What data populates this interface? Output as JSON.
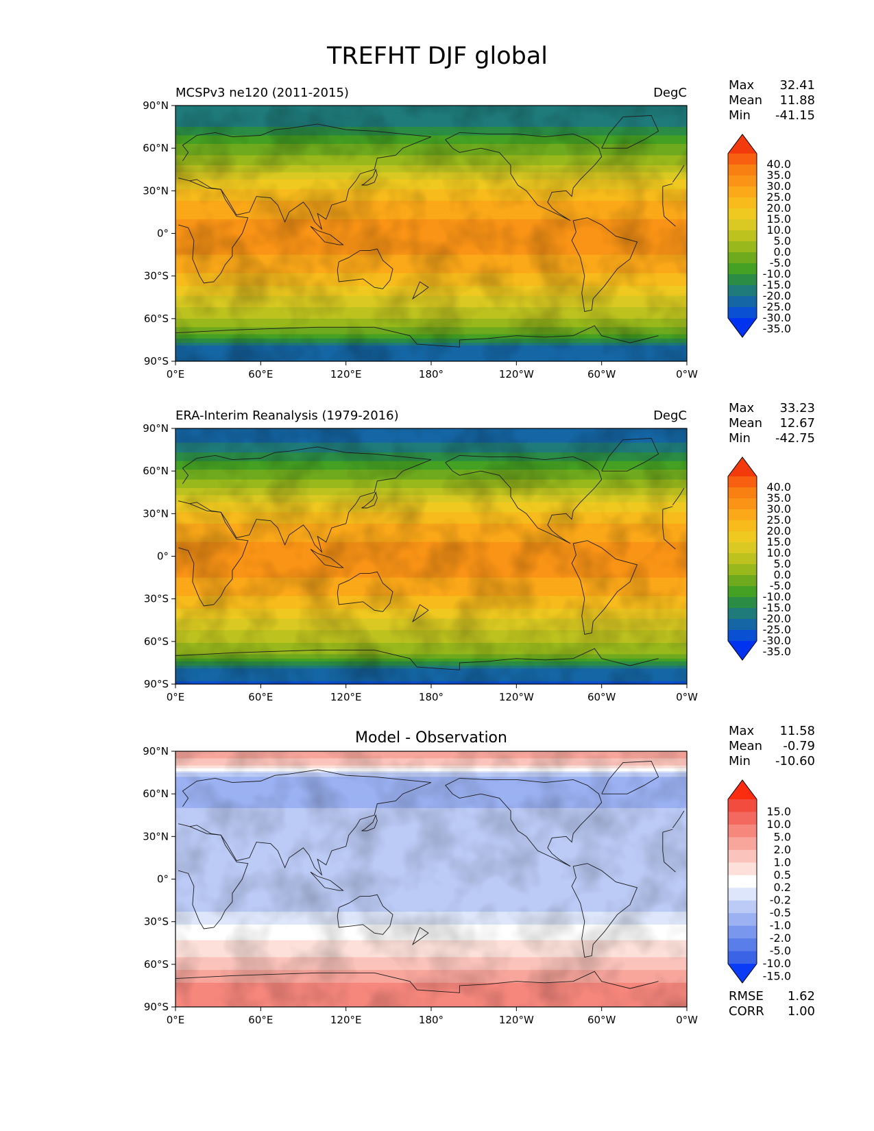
{
  "title": "TREFHT DJF global",
  "chart_data": [
    {
      "type": "heatmap",
      "map": "global-lat-lon",
      "title": "MCSPv3 ne120 (2011-2015)",
      "units": "DegC",
      "x_ticks": [
        "0°E",
        "60°E",
        "120°E",
        "180°",
        "120°W",
        "60°W",
        "0°W"
      ],
      "y_ticks": [
        "90°N",
        "60°N",
        "30°N",
        "0°",
        "30°S",
        "60°S",
        "90°S"
      ],
      "xlim": [
        0,
        360
      ],
      "ylim": [
        -90,
        90
      ],
      "stats": [
        {
          "label": "Max",
          "value": "32.41"
        },
        {
          "label": "Mean",
          "value": "11.88"
        },
        {
          "label": "Min",
          "value": "-41.15"
        }
      ],
      "colorbar": {
        "extend": "both",
        "labels": [
          "40.0",
          "35.0",
          "30.0",
          "25.0",
          "20.0",
          "15.0",
          "10.0",
          "5.0",
          "0.0",
          "-5.0",
          "-10.0",
          "-15.0",
          "-20.0",
          "-25.0",
          "-30.0",
          "-35.0"
        ],
        "colors": [
          "#f33a0c",
          "#f66010",
          "#f88012",
          "#fa9416",
          "#fba819",
          "#f7bb1c",
          "#efc920",
          "#d9c922",
          "#bdc21f",
          "#98b81c",
          "#6faa1e",
          "#45a123",
          "#2b8c45",
          "#1f7b7a",
          "#1566a4",
          "#0a50d2",
          "#0033f0"
        ]
      },
      "zonal_profile": {
        "lat": [
          90,
          80,
          70,
          60,
          50,
          40,
          30,
          20,
          10,
          0,
          -10,
          -20,
          -30,
          -40,
          -50,
          -60,
          -70,
          -80,
          -90
        ],
        "value": [
          -25,
          -24,
          -16,
          -8,
          -2,
          8,
          16,
          22,
          25,
          26,
          26,
          24,
          19,
          13,
          6,
          0,
          -8,
          -26,
          -30
        ]
      }
    },
    {
      "type": "heatmap",
      "map": "global-lat-lon",
      "title": "ERA-Interim Reanalysis (1979-2016)",
      "units": "DegC",
      "x_ticks": [
        "0°E",
        "60°E",
        "120°E",
        "180°",
        "120°W",
        "60°W",
        "0°W"
      ],
      "y_ticks": [
        "90°N",
        "60°N",
        "30°N",
        "0°",
        "30°S",
        "60°S",
        "90°S"
      ],
      "xlim": [
        0,
        360
      ],
      "ylim": [
        -90,
        90
      ],
      "stats": [
        {
          "label": "Max",
          "value": "33.23"
        },
        {
          "label": "Mean",
          "value": "12.67"
        },
        {
          "label": "Min",
          "value": "-42.75"
        }
      ],
      "colorbar": {
        "extend": "both",
        "labels": [
          "40.0",
          "35.0",
          "30.0",
          "25.0",
          "20.0",
          "15.0",
          "10.0",
          "5.0",
          "0.0",
          "-5.0",
          "-10.0",
          "-15.0",
          "-20.0",
          "-25.0",
          "-30.0",
          "-35.0"
        ],
        "colors": [
          "#f33a0c",
          "#f66010",
          "#f88012",
          "#fa9416",
          "#fba819",
          "#f7bb1c",
          "#efc920",
          "#d9c922",
          "#bdc21f",
          "#98b81c",
          "#6faa1e",
          "#45a123",
          "#2b8c45",
          "#1f7b7a",
          "#1566a4",
          "#0a50d2",
          "#0033f0"
        ]
      },
      "zonal_profile": {
        "lat": [
          90,
          80,
          70,
          60,
          50,
          40,
          30,
          20,
          10,
          0,
          -10,
          -20,
          -30,
          -40,
          -50,
          -60,
          -70,
          -80,
          -90
        ],
        "value": [
          -26,
          -25,
          -18,
          -9,
          -2,
          8,
          16,
          22,
          25,
          26,
          26,
          24,
          19,
          13,
          6,
          1,
          -6,
          -27,
          -31
        ]
      }
    },
    {
      "type": "heatmap",
      "map": "global-lat-lon",
      "title": "Model - Observation",
      "units": "",
      "x_ticks": [
        "0°E",
        "60°E",
        "120°E",
        "180°",
        "120°W",
        "60°W",
        "0°W"
      ],
      "y_ticks": [
        "90°N",
        "60°N",
        "30°N",
        "0°",
        "30°S",
        "60°S",
        "90°S"
      ],
      "xlim": [
        0,
        360
      ],
      "ylim": [
        -90,
        90
      ],
      "stats": [
        {
          "label": "Max",
          "value": "11.58"
        },
        {
          "label": "Mean",
          "value": "-0.79"
        },
        {
          "label": "Min",
          "value": "-10.60"
        }
      ],
      "colorbar": {
        "extend": "both",
        "labels": [
          "15.0",
          "10.0",
          "5.0",
          "2.0",
          "1.0",
          "0.5",
          "0.2",
          "-0.2",
          "-0.5",
          "-1.0",
          "-2.0",
          "-5.0",
          "-10.0",
          "-15.0"
        ],
        "colors": [
          "#fb2d10",
          "#f24c3e",
          "#f4695f",
          "#f6877d",
          "#f8a69c",
          "#fac3bb",
          "#fde0da",
          "#ffffff",
          "#dde6fa",
          "#bccbf6",
          "#9bb1f2",
          "#7a97ee",
          "#5a7ee9",
          "#3a64e5",
          "#0a3cf7"
        ]
      },
      "zonal_profile": {
        "lat": [
          90,
          80,
          70,
          60,
          50,
          40,
          30,
          20,
          10,
          0,
          -10,
          -20,
          -30,
          -40,
          -50,
          -60,
          -70,
          -80,
          -90
        ],
        "value": [
          1.5,
          0.5,
          -1.5,
          -1.5,
          -1.0,
          -0.6,
          -0.6,
          -0.8,
          -0.8,
          -0.8,
          -0.8,
          -0.6,
          -0.3,
          0.1,
          0.4,
          0.6,
          1.5,
          3.0,
          2.5
        ]
      },
      "metrics": [
        {
          "label": "RMSE",
          "value": "1.62"
        },
        {
          "label": "CORR",
          "value": "1.00"
        }
      ]
    }
  ]
}
